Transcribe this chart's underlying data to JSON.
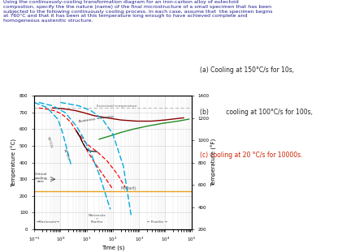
{
  "title_text": "Using the continuously-cooling transformation diagram for an iron-carbon alloy of eutectoid\ncompostion, specify the the nature (name) of the final microstructure of a small specimen that has been\nsubjected to the following continuously cooling process. In each case, assume that  the specimen begins\nat 760°C and that it has been at this temperature long enough to have achieved complete and\nhomogeneous austenitic structure.",
  "annotation_a": "(a) Cooling at 150°C/s for 10s,",
  "annotation_b": "(b)         cooling at 100°C/s for 100s,",
  "annotation_c": "(c) cooling at 20 °C/s for 10000s.",
  "eutectoid_temp": 727,
  "martensite_start": 230,
  "ylabel_left": "Temperature (°C)",
  "ylabel_right": "Temperature (°F)",
  "xlabel": "Time (s)",
  "ylim_c": [
    0,
    800
  ],
  "ylim_f": [
    200,
    1400
  ],
  "xlim": [
    0.1,
    100000
  ],
  "background_color": "#ffffff",
  "grid_color": "#d0d0d0",
  "text_color_title": "#1a1a8c",
  "text_color_black": "#222222",
  "text_color_annotations": "#cc2200"
}
